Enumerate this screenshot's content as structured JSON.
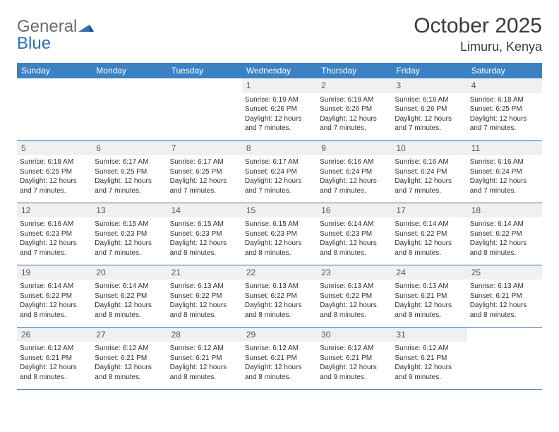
{
  "logo": {
    "general": "General",
    "blue": "Blue"
  },
  "title": "October 2025",
  "location": "Limuru, Kenya",
  "colors": {
    "header_bg": "#3b82c4",
    "header_text": "#ffffff",
    "daynum_bg": "#eef0f2",
    "row_border": "#3b6fa5",
    "text": "#333333",
    "logo_gray": "#6b6b6b",
    "logo_blue": "#2f6fb3"
  },
  "day_names": [
    "Sunday",
    "Monday",
    "Tuesday",
    "Wednesday",
    "Thursday",
    "Friday",
    "Saturday"
  ],
  "weeks": [
    [
      {
        "n": "",
        "sr": "",
        "ss": "",
        "dl": ""
      },
      {
        "n": "",
        "sr": "",
        "ss": "",
        "dl": ""
      },
      {
        "n": "",
        "sr": "",
        "ss": "",
        "dl": ""
      },
      {
        "n": "1",
        "sr": "6:19 AM",
        "ss": "6:26 PM",
        "dl": "12 hours and 7 minutes."
      },
      {
        "n": "2",
        "sr": "6:19 AM",
        "ss": "6:26 PM",
        "dl": "12 hours and 7 minutes."
      },
      {
        "n": "3",
        "sr": "6:18 AM",
        "ss": "6:26 PM",
        "dl": "12 hours and 7 minutes."
      },
      {
        "n": "4",
        "sr": "6:18 AM",
        "ss": "6:25 PM",
        "dl": "12 hours and 7 minutes."
      }
    ],
    [
      {
        "n": "5",
        "sr": "6:18 AM",
        "ss": "6:25 PM",
        "dl": "12 hours and 7 minutes."
      },
      {
        "n": "6",
        "sr": "6:17 AM",
        "ss": "6:25 PM",
        "dl": "12 hours and 7 minutes."
      },
      {
        "n": "7",
        "sr": "6:17 AM",
        "ss": "6:25 PM",
        "dl": "12 hours and 7 minutes."
      },
      {
        "n": "8",
        "sr": "6:17 AM",
        "ss": "6:24 PM",
        "dl": "12 hours and 7 minutes."
      },
      {
        "n": "9",
        "sr": "6:16 AM",
        "ss": "6:24 PM",
        "dl": "12 hours and 7 minutes."
      },
      {
        "n": "10",
        "sr": "6:16 AM",
        "ss": "6:24 PM",
        "dl": "12 hours and 7 minutes."
      },
      {
        "n": "11",
        "sr": "6:16 AM",
        "ss": "6:24 PM",
        "dl": "12 hours and 7 minutes."
      }
    ],
    [
      {
        "n": "12",
        "sr": "6:16 AM",
        "ss": "6:23 PM",
        "dl": "12 hours and 7 minutes."
      },
      {
        "n": "13",
        "sr": "6:15 AM",
        "ss": "6:23 PM",
        "dl": "12 hours and 7 minutes."
      },
      {
        "n": "14",
        "sr": "6:15 AM",
        "ss": "6:23 PM",
        "dl": "12 hours and 8 minutes."
      },
      {
        "n": "15",
        "sr": "6:15 AM",
        "ss": "6:23 PM",
        "dl": "12 hours and 8 minutes."
      },
      {
        "n": "16",
        "sr": "6:14 AM",
        "ss": "6:23 PM",
        "dl": "12 hours and 8 minutes."
      },
      {
        "n": "17",
        "sr": "6:14 AM",
        "ss": "6:22 PM",
        "dl": "12 hours and 8 minutes."
      },
      {
        "n": "18",
        "sr": "6:14 AM",
        "ss": "6:22 PM",
        "dl": "12 hours and 8 minutes."
      }
    ],
    [
      {
        "n": "19",
        "sr": "6:14 AM",
        "ss": "6:22 PM",
        "dl": "12 hours and 8 minutes."
      },
      {
        "n": "20",
        "sr": "6:14 AM",
        "ss": "6:22 PM",
        "dl": "12 hours and 8 minutes."
      },
      {
        "n": "21",
        "sr": "6:13 AM",
        "ss": "6:22 PM",
        "dl": "12 hours and 8 minutes."
      },
      {
        "n": "22",
        "sr": "6:13 AM",
        "ss": "6:22 PM",
        "dl": "12 hours and 8 minutes."
      },
      {
        "n": "23",
        "sr": "6:13 AM",
        "ss": "6:22 PM",
        "dl": "12 hours and 8 minutes."
      },
      {
        "n": "24",
        "sr": "6:13 AM",
        "ss": "6:21 PM",
        "dl": "12 hours and 8 minutes."
      },
      {
        "n": "25",
        "sr": "6:13 AM",
        "ss": "6:21 PM",
        "dl": "12 hours and 8 minutes."
      }
    ],
    [
      {
        "n": "26",
        "sr": "6:12 AM",
        "ss": "6:21 PM",
        "dl": "12 hours and 8 minutes."
      },
      {
        "n": "27",
        "sr": "6:12 AM",
        "ss": "6:21 PM",
        "dl": "12 hours and 8 minutes."
      },
      {
        "n": "28",
        "sr": "6:12 AM",
        "ss": "6:21 PM",
        "dl": "12 hours and 8 minutes."
      },
      {
        "n": "29",
        "sr": "6:12 AM",
        "ss": "6:21 PM",
        "dl": "12 hours and 8 minutes."
      },
      {
        "n": "30",
        "sr": "6:12 AM",
        "ss": "6:21 PM",
        "dl": "12 hours and 9 minutes."
      },
      {
        "n": "31",
        "sr": "6:12 AM",
        "ss": "6:21 PM",
        "dl": "12 hours and 9 minutes."
      },
      {
        "n": "",
        "sr": "",
        "ss": "",
        "dl": ""
      }
    ]
  ],
  "labels": {
    "sunrise_prefix": "Sunrise: ",
    "sunset_prefix": "Sunset: ",
    "daylight_prefix": "Daylight: "
  }
}
